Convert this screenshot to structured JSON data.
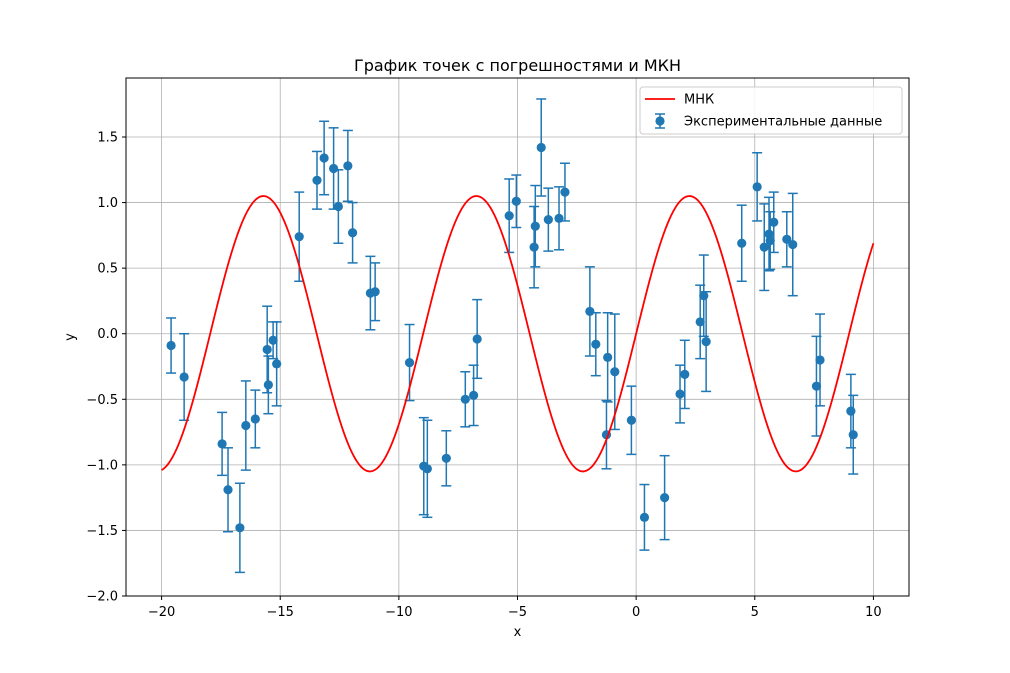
{
  "chart_data": {
    "type": "scatter",
    "title": "График точек с погрешностями и МКН",
    "xlabel": "x",
    "ylabel": "y",
    "xlim": [
      -21.5,
      11.5
    ],
    "ylim": [
      -2.0,
      1.95
    ],
    "x_ticks": [
      -20,
      -15,
      -10,
      -5,
      0,
      5,
      10
    ],
    "x_tick_labels": [
      "−20",
      "−15",
      "−10",
      "−5",
      "0",
      "5",
      "10"
    ],
    "y_ticks": [
      -2.0,
      -1.5,
      -1.0,
      -0.5,
      0.0,
      0.5,
      1.0,
      1.5
    ],
    "y_tick_labels": [
      "−2.0",
      "−1.5",
      "−1.0",
      "−0.5",
      "0.0",
      "0.5",
      "1.0",
      "1.5"
    ],
    "grid": true,
    "legend": {
      "placement": "top-right",
      "entries": [
        {
          "label": "МНК",
          "color": "#ff0000",
          "kind": "line"
        },
        {
          "label": "Экспериментальные данные",
          "color": "#1f77b4",
          "kind": "errorbar"
        }
      ]
    },
    "fit_curve": {
      "name": "МНК",
      "color": "#ff0000",
      "function": "sin",
      "amplitude": 1.05,
      "frequency": 0.7,
      "x_range": [
        -20,
        10
      ]
    },
    "series": [
      {
        "name": "Экспериментальные данные",
        "color": "#1f77b4",
        "points": [
          {
            "x": -19.6,
            "y": -0.09,
            "err": 0.21
          },
          {
            "x": -19.05,
            "y": -0.33,
            "err": 0.33
          },
          {
            "x": -17.45,
            "y": -0.84,
            "err": 0.24
          },
          {
            "x": -17.2,
            "y": -1.19,
            "err": 0.32
          },
          {
            "x": -16.7,
            "y": -1.48,
            "err": 0.34
          },
          {
            "x": -16.45,
            "y": -0.7,
            "err": 0.34
          },
          {
            "x": -16.05,
            "y": -0.65,
            "err": 0.22
          },
          {
            "x": -15.55,
            "y": -0.12,
            "err": 0.33
          },
          {
            "x": -15.5,
            "y": -0.39,
            "err": 0.22
          },
          {
            "x": -15.3,
            "y": -0.05,
            "err": 0.14
          },
          {
            "x": -15.15,
            "y": -0.23,
            "err": 0.32
          },
          {
            "x": -14.2,
            "y": 0.74,
            "err": 0.34
          },
          {
            "x": -13.45,
            "y": 1.17,
            "err": 0.22
          },
          {
            "x": -13.15,
            "y": 1.34,
            "err": 0.28
          },
          {
            "x": -12.75,
            "y": 1.26,
            "err": 0.31
          },
          {
            "x": -12.55,
            "y": 0.97,
            "err": 0.28
          },
          {
            "x": -12.15,
            "y": 1.28,
            "err": 0.27
          },
          {
            "x": -11.95,
            "y": 0.77,
            "err": 0.23
          },
          {
            "x": -11.2,
            "y": 0.31,
            "err": 0.28
          },
          {
            "x": -11.0,
            "y": 0.32,
            "err": 0.22
          },
          {
            "x": -9.55,
            "y": -0.22,
            "err": 0.29
          },
          {
            "x": -8.95,
            "y": -1.01,
            "err": 0.37
          },
          {
            "x": -8.8,
            "y": -1.03,
            "err": 0.37
          },
          {
            "x": -8.0,
            "y": -0.95,
            "err": 0.21
          },
          {
            "x": -7.2,
            "y": -0.5,
            "err": 0.21
          },
          {
            "x": -6.85,
            "y": -0.47,
            "err": 0.23
          },
          {
            "x": -6.7,
            "y": -0.04,
            "err": 0.3
          },
          {
            "x": -5.35,
            "y": 0.9,
            "err": 0.28
          },
          {
            "x": -5.05,
            "y": 1.01,
            "err": 0.2
          },
          {
            "x": -4.3,
            "y": 0.66,
            "err": 0.31
          },
          {
            "x": -4.25,
            "y": 0.82,
            "err": 0.31
          },
          {
            "x": -4.0,
            "y": 1.42,
            "err": 0.37
          },
          {
            "x": -3.7,
            "y": 0.87,
            "err": 0.24
          },
          {
            "x": -3.25,
            "y": 0.88,
            "err": 0.24
          },
          {
            "x": -3.0,
            "y": 1.08,
            "err": 0.22
          },
          {
            "x": -1.95,
            "y": 0.17,
            "err": 0.34
          },
          {
            "x": -1.7,
            "y": -0.08,
            "err": 0.24
          },
          {
            "x": -1.25,
            "y": -0.77,
            "err": 0.26
          },
          {
            "x": -1.2,
            "y": -0.18,
            "err": 0.34
          },
          {
            "x": -0.9,
            "y": -0.29,
            "err": 0.44
          },
          {
            "x": -0.2,
            "y": -0.66,
            "err": 0.26
          },
          {
            "x": 0.35,
            "y": -1.4,
            "err": 0.25
          },
          {
            "x": 1.2,
            "y": -1.25,
            "err": 0.32
          },
          {
            "x": 1.85,
            "y": -0.46,
            "err": 0.22
          },
          {
            "x": 2.05,
            "y": -0.31,
            "err": 0.26
          },
          {
            "x": 2.7,
            "y": 0.09,
            "err": 0.28
          },
          {
            "x": 2.85,
            "y": 0.29,
            "err": 0.31
          },
          {
            "x": 2.95,
            "y": -0.06,
            "err": 0.38
          },
          {
            "x": 4.45,
            "y": 0.69,
            "err": 0.29
          },
          {
            "x": 5.1,
            "y": 1.12,
            "err": 0.26
          },
          {
            "x": 5.4,
            "y": 0.66,
            "err": 0.33
          },
          {
            "x": 5.6,
            "y": 0.76,
            "err": 0.28
          },
          {
            "x": 5.65,
            "y": 0.71,
            "err": 0.22
          },
          {
            "x": 5.8,
            "y": 0.85,
            "err": 0.23
          },
          {
            "x": 6.35,
            "y": 0.72,
            "err": 0.21
          },
          {
            "x": 6.6,
            "y": 0.68,
            "err": 0.39
          },
          {
            "x": 7.6,
            "y": -0.4,
            "err": 0.38
          },
          {
            "x": 7.75,
            "y": -0.2,
            "err": 0.35
          },
          {
            "x": 9.05,
            "y": -0.59,
            "err": 0.28
          },
          {
            "x": 9.15,
            "y": -0.77,
            "err": 0.3
          }
        ]
      }
    ]
  }
}
